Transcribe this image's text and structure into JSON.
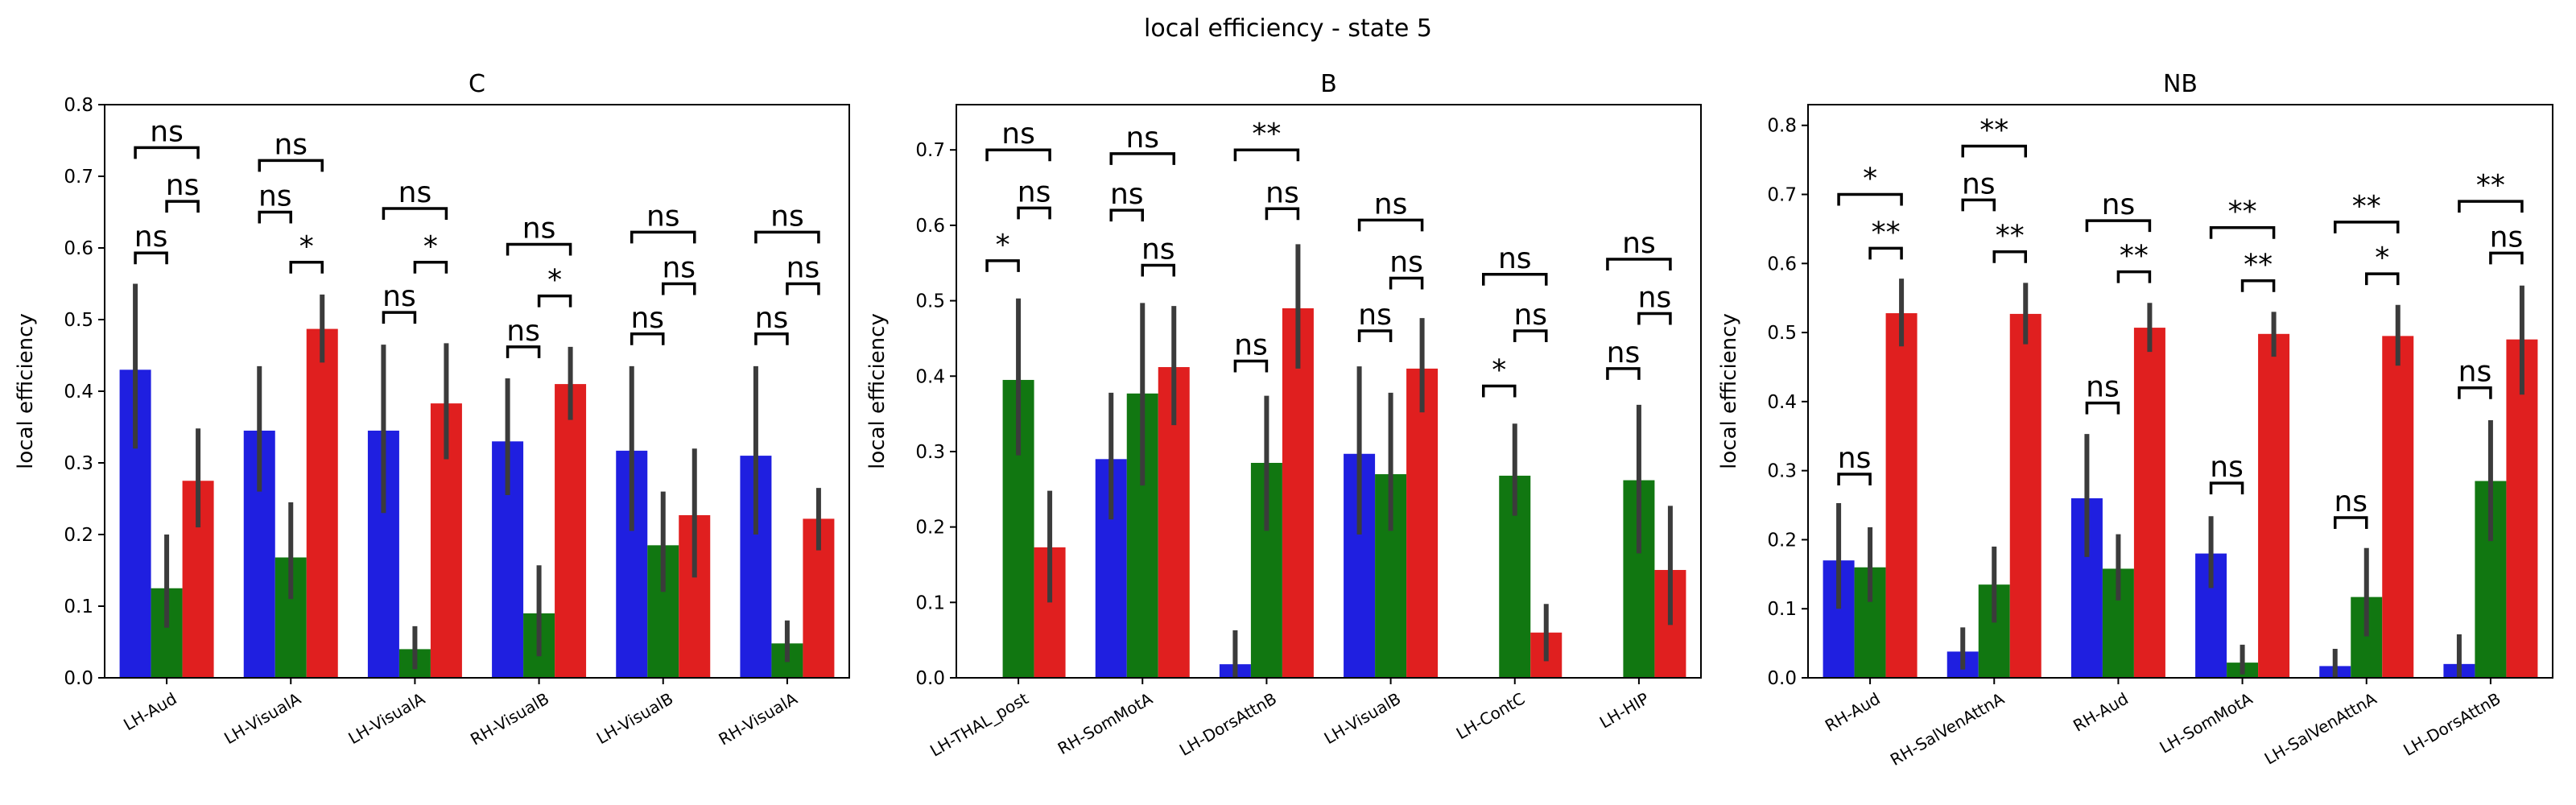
{
  "figure_title": "local efficiency - state 5",
  "colors": {
    "blue": "#1f1fe0",
    "green": "#117711",
    "red": "#e01f1f",
    "errorbar": "#3b3b3b"
  },
  "chart_data": [
    {
      "type": "bar",
      "title": "C",
      "ylabel": "local efficiency",
      "ylim": [
        0,
        0.8
      ],
      "yticks": [
        0.0,
        0.1,
        0.2,
        0.3,
        0.4,
        0.5,
        0.6,
        0.7,
        0.8
      ],
      "categories": [
        "LH-Aud",
        "LH-VisualA",
        "LH-VisualA",
        "RH-VisualB",
        "LH-VisualB",
        "RH-VisualA"
      ],
      "series": [
        {
          "color": "#1f1fe0",
          "values": [
            0.43,
            0.345,
            0.345,
            0.33,
            0.317,
            0.31
          ],
          "err_low": [
            0.32,
            0.26,
            0.23,
            0.255,
            0.205,
            0.2
          ],
          "err_high": [
            0.55,
            0.435,
            0.465,
            0.418,
            0.435,
            0.435
          ]
        },
        {
          "color": "#117711",
          "values": [
            0.125,
            0.168,
            0.04,
            0.09,
            0.185,
            0.048
          ],
          "err_low": [
            0.07,
            0.11,
            0.012,
            0.03,
            0.12,
            0.022
          ],
          "err_high": [
            0.2,
            0.245,
            0.072,
            0.157,
            0.26,
            0.08
          ]
        },
        {
          "color": "#e01f1f",
          "values": [
            0.275,
            0.487,
            0.383,
            0.41,
            0.227,
            0.222
          ],
          "err_low": [
            0.21,
            0.44,
            0.305,
            0.36,
            0.14,
            0.178
          ],
          "err_high": [
            0.348,
            0.535,
            0.467,
            0.462,
            0.32,
            0.265
          ]
        }
      ],
      "annotations": [
        {
          "category": 0,
          "pair": "blue-green",
          "label": "ns",
          "y": 0.593
        },
        {
          "category": 0,
          "pair": "green-red",
          "label": "ns",
          "y": 0.665
        },
        {
          "category": 0,
          "pair": "blue-red",
          "label": "ns",
          "y": 0.74
        },
        {
          "category": 1,
          "pair": "blue-green",
          "label": "ns",
          "y": 0.65
        },
        {
          "category": 1,
          "pair": "green-red",
          "label": "*",
          "y": 0.58
        },
        {
          "category": 1,
          "pair": "blue-red",
          "label": "ns",
          "y": 0.722
        },
        {
          "category": 2,
          "pair": "blue-green",
          "label": "ns",
          "y": 0.51
        },
        {
          "category": 2,
          "pair": "green-red",
          "label": "*",
          "y": 0.58
        },
        {
          "category": 2,
          "pair": "blue-red",
          "label": "ns",
          "y": 0.655
        },
        {
          "category": 3,
          "pair": "blue-green",
          "label": "ns",
          "y": 0.462
        },
        {
          "category": 3,
          "pair": "green-red",
          "label": "*",
          "y": 0.533
        },
        {
          "category": 3,
          "pair": "blue-red",
          "label": "ns",
          "y": 0.605
        },
        {
          "category": 4,
          "pair": "blue-green",
          "label": "ns",
          "y": 0.48
        },
        {
          "category": 4,
          "pair": "green-red",
          "label": "ns",
          "y": 0.55
        },
        {
          "category": 4,
          "pair": "blue-red",
          "label": "ns",
          "y": 0.622
        },
        {
          "category": 5,
          "pair": "blue-green",
          "label": "ns",
          "y": 0.48
        },
        {
          "category": 5,
          "pair": "green-red",
          "label": "ns",
          "y": 0.55
        },
        {
          "category": 5,
          "pair": "blue-red",
          "label": "ns",
          "y": 0.622
        }
      ]
    },
    {
      "type": "bar",
      "title": "B",
      "ylabel": "local efficiency",
      "ylim": [
        0,
        0.76
      ],
      "yticks": [
        0.0,
        0.1,
        0.2,
        0.3,
        0.4,
        0.5,
        0.6,
        0.7
      ],
      "categories": [
        "LH-THAL_post",
        "RH-SomMotA",
        "LH-DorsAttnB",
        "LH-VisualB",
        "LH-ContC",
        "LH-HIP"
      ],
      "series": [
        {
          "color": "#1f1fe0",
          "values": [
            0.0,
            0.29,
            0.018,
            0.297,
            0.0,
            0.0
          ],
          "err_low": [
            0.0,
            0.21,
            0.0,
            0.19,
            0.0,
            0.0
          ],
          "err_high": [
            0.0,
            0.378,
            0.063,
            0.413,
            0.0,
            0.0
          ]
        },
        {
          "color": "#117711",
          "values": [
            0.395,
            0.377,
            0.285,
            0.27,
            0.268,
            0.262
          ],
          "err_low": [
            0.295,
            0.255,
            0.195,
            0.195,
            0.215,
            0.165
          ],
          "err_high": [
            0.503,
            0.497,
            0.374,
            0.378,
            0.337,
            0.362
          ]
        },
        {
          "color": "#e01f1f",
          "values": [
            0.173,
            0.412,
            0.49,
            0.41,
            0.06,
            0.143
          ],
          "err_low": [
            0.1,
            0.335,
            0.41,
            0.352,
            0.022,
            0.07
          ],
          "err_high": [
            0.248,
            0.493,
            0.575,
            0.477,
            0.098,
            0.228
          ]
        }
      ],
      "annotations": [
        {
          "category": 0,
          "pair": "blue-green",
          "label": "*",
          "y": 0.553
        },
        {
          "category": 0,
          "pair": "green-red",
          "label": "ns",
          "y": 0.623
        },
        {
          "category": 0,
          "pair": "blue-red",
          "label": "ns",
          "y": 0.7
        },
        {
          "category": 1,
          "pair": "blue-green",
          "label": "ns",
          "y": 0.62
        },
        {
          "category": 1,
          "pair": "green-red",
          "label": "ns",
          "y": 0.547
        },
        {
          "category": 1,
          "pair": "blue-red",
          "label": "ns",
          "y": 0.695
        },
        {
          "category": 2,
          "pair": "blue-green",
          "label": "ns",
          "y": 0.42
        },
        {
          "category": 2,
          "pair": "green-red",
          "label": "ns",
          "y": 0.622
        },
        {
          "category": 2,
          "pair": "blue-red",
          "label": "**",
          "y": 0.7
        },
        {
          "category": 3,
          "pair": "blue-green",
          "label": "ns",
          "y": 0.46
        },
        {
          "category": 3,
          "pair": "green-red",
          "label": "ns",
          "y": 0.53
        },
        {
          "category": 3,
          "pair": "blue-red",
          "label": "ns",
          "y": 0.607
        },
        {
          "category": 4,
          "pair": "blue-green",
          "label": "*",
          "y": 0.387
        },
        {
          "category": 4,
          "pair": "green-red",
          "label": "ns",
          "y": 0.46
        },
        {
          "category": 4,
          "pair": "blue-red",
          "label": "ns",
          "y": 0.535
        },
        {
          "category": 5,
          "pair": "blue-green",
          "label": "ns",
          "y": 0.41
        },
        {
          "category": 5,
          "pair": "green-red",
          "label": "ns",
          "y": 0.483
        },
        {
          "category": 5,
          "pair": "blue-red",
          "label": "ns",
          "y": 0.555
        }
      ]
    },
    {
      "type": "bar",
      "title": "NB",
      "ylabel": "local efficiency",
      "ylim": [
        0,
        0.83
      ],
      "yticks": [
        0.0,
        0.1,
        0.2,
        0.3,
        0.4,
        0.5,
        0.6,
        0.7,
        0.8
      ],
      "categories": [
        "RH-Aud",
        "RH-SalVenAttnA",
        "RH-Aud",
        "LH-SomMotA",
        "LH-SalVenAttnA",
        "LH-DorsAttnB"
      ],
      "series": [
        {
          "color": "#1f1fe0",
          "values": [
            0.17,
            0.038,
            0.26,
            0.18,
            0.017,
            0.02
          ],
          "err_low": [
            0.1,
            0.012,
            0.175,
            0.13,
            0.0,
            0.0
          ],
          "err_high": [
            0.253,
            0.073,
            0.353,
            0.234,
            0.042,
            0.063
          ]
        },
        {
          "color": "#117711",
          "values": [
            0.16,
            0.135,
            0.158,
            0.022,
            0.117,
            0.285
          ],
          "err_low": [
            0.11,
            0.08,
            0.112,
            0.005,
            0.06,
            0.198
          ],
          "err_high": [
            0.218,
            0.19,
            0.208,
            0.048,
            0.188,
            0.373
          ]
        },
        {
          "color": "#e01f1f",
          "values": [
            0.528,
            0.527,
            0.507,
            0.498,
            0.495,
            0.49
          ],
          "err_low": [
            0.48,
            0.483,
            0.472,
            0.465,
            0.452,
            0.41
          ],
          "err_high": [
            0.578,
            0.572,
            0.543,
            0.53,
            0.54,
            0.568
          ]
        }
      ],
      "annotations": [
        {
          "category": 0,
          "pair": "blue-green",
          "label": "ns",
          "y": 0.295
        },
        {
          "category": 0,
          "pair": "green-red",
          "label": "**",
          "y": 0.622
        },
        {
          "category": 0,
          "pair": "blue-red",
          "label": "*",
          "y": 0.7
        },
        {
          "category": 1,
          "pair": "blue-green",
          "label": "ns",
          "y": 0.692
        },
        {
          "category": 1,
          "pair": "green-red",
          "label": "**",
          "y": 0.617
        },
        {
          "category": 1,
          "pair": "blue-red",
          "label": "**",
          "y": 0.77
        },
        {
          "category": 2,
          "pair": "blue-green",
          "label": "ns",
          "y": 0.398
        },
        {
          "category": 2,
          "pair": "green-red",
          "label": "**",
          "y": 0.588
        },
        {
          "category": 2,
          "pair": "blue-red",
          "label": "ns",
          "y": 0.662
        },
        {
          "category": 3,
          "pair": "blue-green",
          "label": "ns",
          "y": 0.282
        },
        {
          "category": 3,
          "pair": "green-red",
          "label": "**",
          "y": 0.575
        },
        {
          "category": 3,
          "pair": "blue-red",
          "label": "**",
          "y": 0.652
        },
        {
          "category": 4,
          "pair": "blue-green",
          "label": "ns",
          "y": 0.232
        },
        {
          "category": 4,
          "pair": "green-red",
          "label": "*",
          "y": 0.585
        },
        {
          "category": 4,
          "pair": "blue-red",
          "label": "**",
          "y": 0.66
        },
        {
          "category": 5,
          "pair": "blue-green",
          "label": "ns",
          "y": 0.42
        },
        {
          "category": 5,
          "pair": "green-red",
          "label": "ns",
          "y": 0.615
        },
        {
          "category": 5,
          "pair": "blue-red",
          "label": "**",
          "y": 0.69
        }
      ]
    }
  ]
}
